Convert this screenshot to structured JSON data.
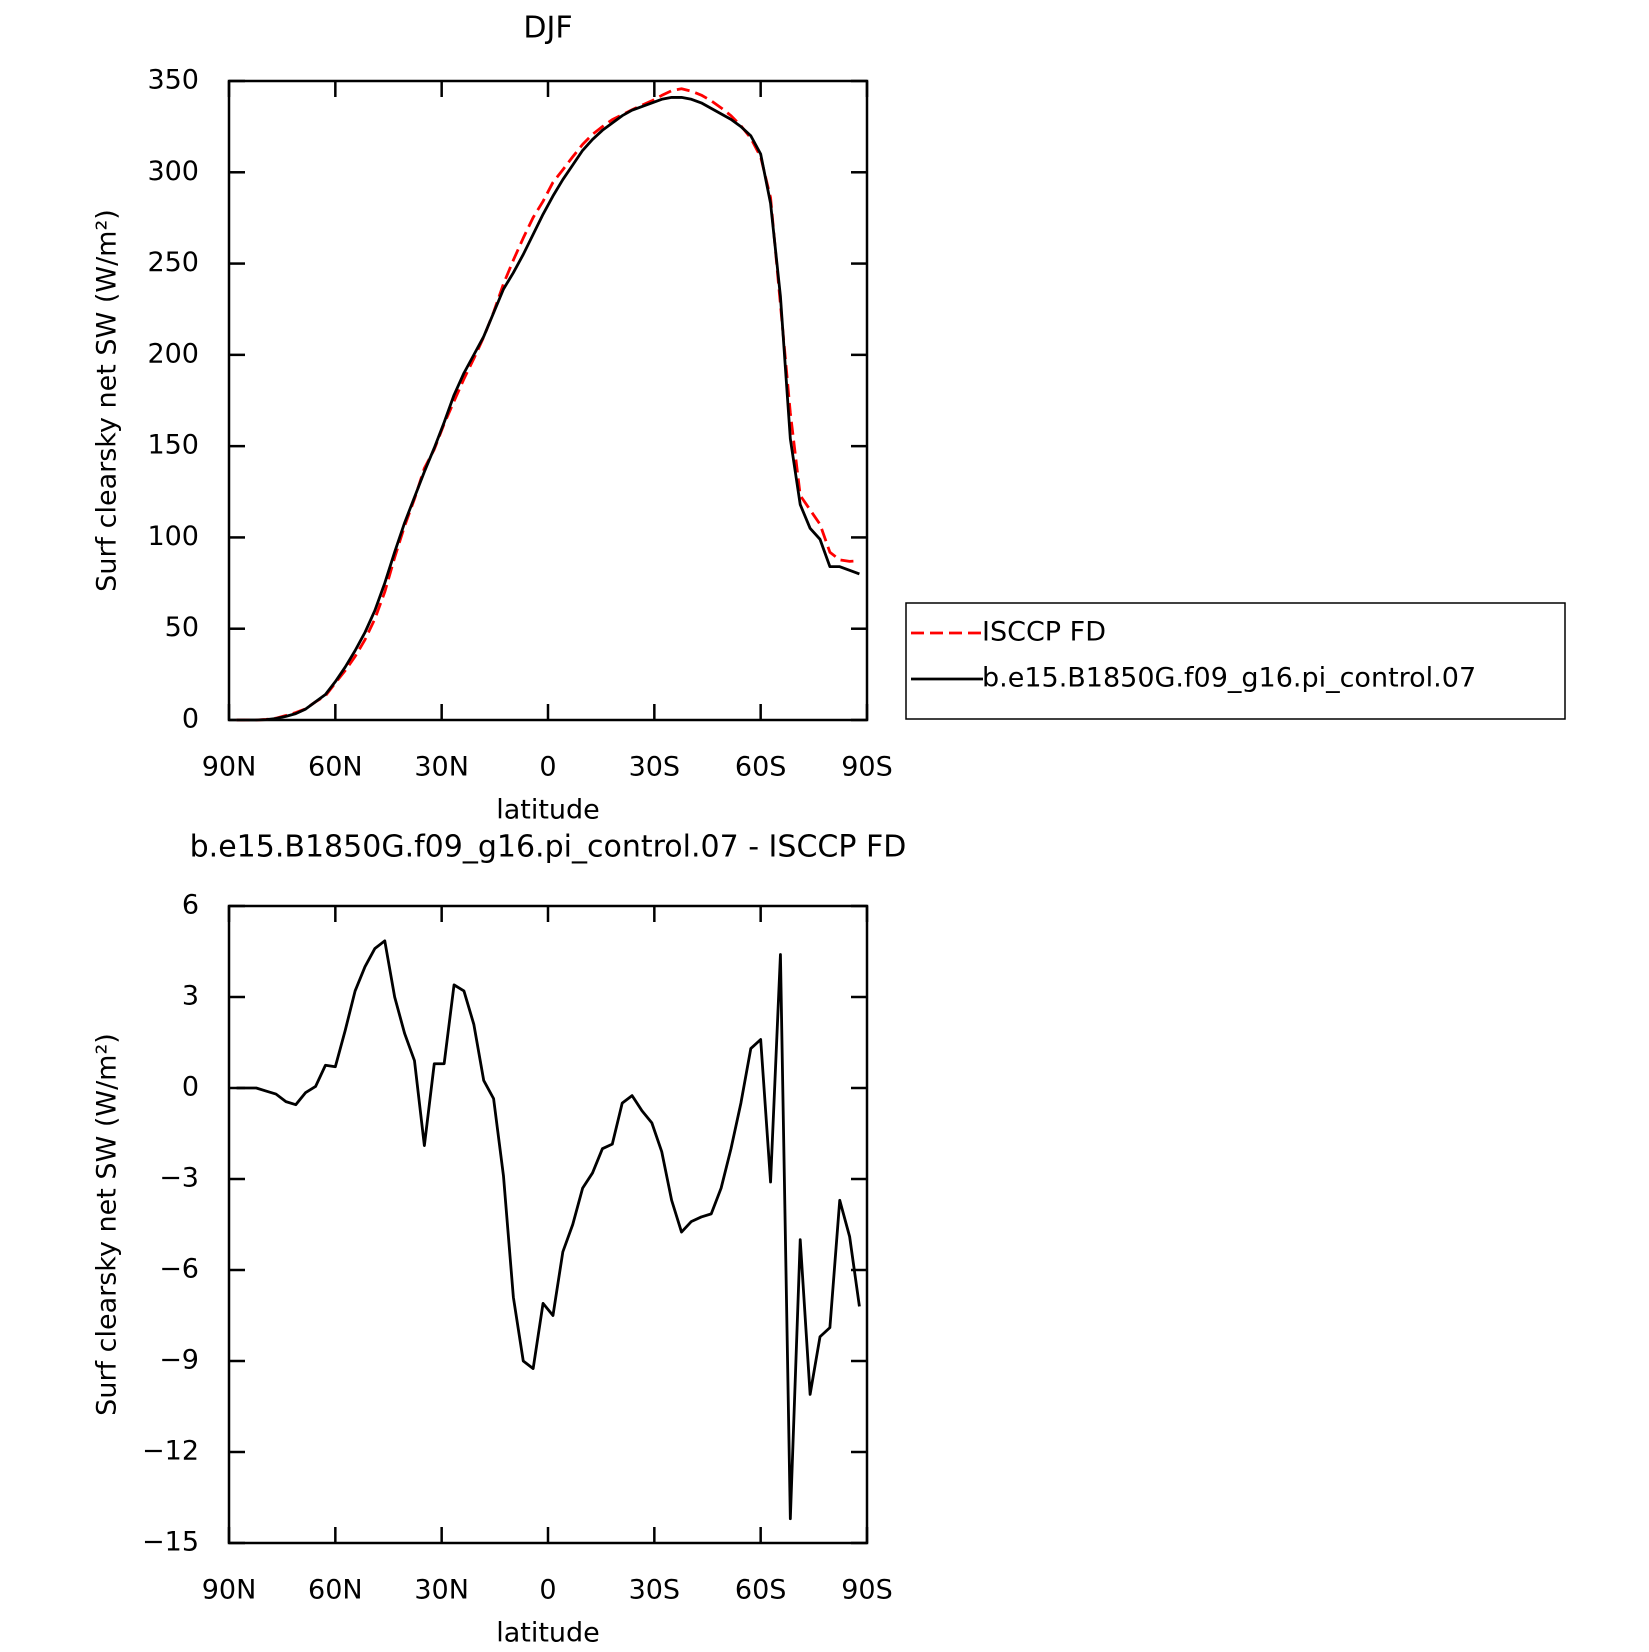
{
  "chart_data": [
    {
      "type": "line",
      "title": "DJF",
      "xlabel": "latitude",
      "ylabel": "Surf clearsky net SW (W/m²)",
      "x": [
        87.86,
        85.1,
        82.31,
        79.53,
        76.74,
        73.95,
        71.16,
        68.37,
        65.58,
        62.79,
        60.0,
        57.21,
        54.42,
        51.63,
        48.84,
        46.05,
        43.26,
        40.46,
        37.67,
        34.88,
        32.09,
        29.3,
        26.51,
        23.72,
        20.93,
        18.14,
        15.35,
        12.56,
        9.77,
        6.98,
        4.19,
        1.4,
        -1.4,
        -4.19,
        -6.98,
        -9.77,
        -12.56,
        -15.35,
        -18.14,
        -20.93,
        -23.72,
        -26.51,
        -29.3,
        -32.09,
        -34.88,
        -37.67,
        -40.46,
        -43.26,
        -46.05,
        -48.84,
        -51.63,
        -54.42,
        -57.21,
        -60.0,
        -62.79,
        -65.58,
        -68.37,
        -71.16,
        -73.95,
        -76.74,
        -79.53,
        -82.31,
        -85.1,
        -87.86
      ],
      "series": [
        {
          "name": "ISCCP FD",
          "color": "#ff0000",
          "dash": true,
          "values": [
            0,
            0,
            0,
            0.3,
            1.0,
            2.45,
            4.05,
            6.15,
            9.95,
            13.25,
            20.3,
            27.1,
            34.8,
            44,
            55.4,
            70.15,
            89,
            106.2,
            121.1,
            137.9,
            148.2,
            162.2,
            174.6,
            186.8,
            197.9,
            209.75,
            223.35,
            238.9,
            251.9,
            264,
            275.25,
            284.1,
            294.5,
            301.4,
            308.5,
            315.3,
            320.8,
            325,
            328.85,
            331.5,
            334.25,
            336.75,
            339.15,
            342.1,
            344.7,
            345.75,
            344.4,
            342.25,
            339.15,
            335.3,
            331,
            325.5,
            318.7,
            308.4,
            286.1,
            227.6,
            168.2,
            123,
            115.1,
            107.2,
            91.9,
            87.7,
            86.9,
            87.2
          ]
        },
        {
          "name": "b.e15.B1850G.f09_g16.pi_control.07",
          "color": "#000000",
          "dash": false,
          "values": [
            0,
            0,
            0,
            0.2,
            0.8,
            2,
            3.5,
            6,
            10,
            14,
            21,
            29,
            38,
            48,
            60,
            75,
            92,
            108,
            122,
            136,
            149,
            163,
            178,
            190,
            200,
            210,
            223,
            236,
            245,
            255,
            266,
            277,
            287,
            296,
            304,
            312,
            318,
            323,
            327,
            331,
            334,
            336,
            338,
            340,
            341,
            341,
            340,
            338,
            335,
            332,
            329,
            325,
            320,
            310,
            283,
            232,
            154,
            118,
            105,
            99,
            84,
            84,
            82,
            80
          ]
        }
      ],
      "xlim": [
        90,
        -90
      ],
      "xticks": [
        {
          "value": 90,
          "label": "90N"
        },
        {
          "value": 60,
          "label": "60N"
        },
        {
          "value": 30,
          "label": "30N"
        },
        0,
        {
          "value": -30,
          "label": "30S"
        },
        {
          "value": -60,
          "label": "60S"
        },
        {
          "value": -90,
          "label": "90S"
        }
      ],
      "ylim": [
        0,
        350
      ],
      "yticks": [
        0,
        50,
        100,
        150,
        200,
        250,
        300,
        350
      ],
      "legend": "outside-right"
    },
    {
      "type": "line",
      "title": "b.e15.B1850G.f09_g16.pi_control.07 - ISCCP FD",
      "xlabel": "latitude",
      "ylabel": "Surf clearsky net SW (W/m²)",
      "x": [
        87.86,
        85.1,
        82.31,
        79.53,
        76.74,
        73.95,
        71.16,
        68.37,
        65.58,
        62.79,
        60.0,
        57.21,
        54.42,
        51.63,
        48.84,
        46.05,
        43.26,
        40.46,
        37.67,
        34.88,
        32.09,
        29.3,
        26.51,
        23.72,
        20.93,
        18.14,
        15.35,
        12.56,
        9.77,
        6.98,
        4.19,
        1.4,
        -1.4,
        -4.19,
        -6.98,
        -9.77,
        -12.56,
        -15.35,
        -18.14,
        -20.93,
        -23.72,
        -26.51,
        -29.3,
        -32.09,
        -34.88,
        -37.67,
        -40.46,
        -43.26,
        -46.05,
        -48.84,
        -51.63,
        -54.42,
        -57.21,
        -60.0,
        -62.79,
        -65.58,
        -68.37,
        -71.16,
        -73.95,
        -76.74,
        -79.53,
        -82.31,
        -85.1,
        -87.86
      ],
      "series": [
        {
          "color": "#000000",
          "dash": false,
          "values": [
            0,
            0,
            0,
            -0.1,
            -0.2,
            -0.45,
            -0.55,
            -0.15,
            0.05,
            0.75,
            0.7,
            1.9,
            3.2,
            4.0,
            4.6,
            4.85,
            3.0,
            1.8,
            0.9,
            -1.9,
            0.8,
            0.8,
            3.4,
            3.2,
            2.1,
            0.25,
            -0.35,
            -2.9,
            -6.9,
            -9.0,
            -9.25,
            -7.1,
            -7.5,
            -5.4,
            -4.5,
            -3.3,
            -2.8,
            -2.0,
            -1.85,
            -0.5,
            -0.25,
            -0.75,
            -1.15,
            -2.1,
            -3.7,
            -4.75,
            -4.4,
            -4.25,
            -4.15,
            -3.3,
            -2.0,
            -0.5,
            1.3,
            1.6,
            -3.1,
            4.4,
            -14.2,
            -5.0,
            -10.1,
            -8.2,
            -7.9,
            -3.7,
            -4.9,
            -7.2
          ]
        }
      ],
      "xlim": [
        90,
        -90
      ],
      "xticks": [
        {
          "value": 90,
          "label": "90N"
        },
        {
          "value": 60,
          "label": "60N"
        },
        {
          "value": 30,
          "label": "30N"
        },
        0,
        {
          "value": -30,
          "label": "30S"
        },
        {
          "value": -60,
          "label": "60S"
        },
        {
          "value": -90,
          "label": "90S"
        }
      ],
      "ylim": [
        -15,
        6
      ],
      "yticks": [
        {
          "value": -15,
          "label": "−15"
        },
        {
          "value": -12,
          "label": "−12"
        },
        {
          "value": -9,
          "label": "−9"
        },
        {
          "value": -6,
          "label": "−6"
        },
        {
          "value": -3,
          "label": "−3"
        },
        0,
        3,
        6
      ]
    }
  ]
}
